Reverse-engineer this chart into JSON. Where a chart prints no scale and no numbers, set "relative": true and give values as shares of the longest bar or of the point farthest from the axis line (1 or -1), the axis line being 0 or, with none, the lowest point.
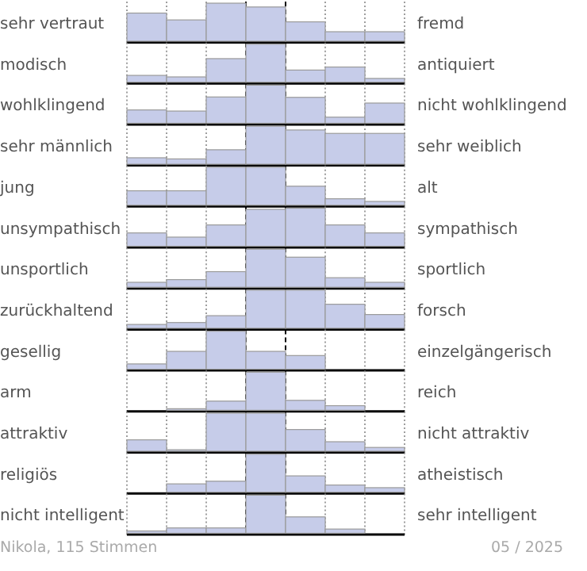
{
  "chart_data": [
    {
      "type": "bar",
      "relative": true,
      "ylabel": "sehr vertraut",
      "y2label": "fremd",
      "categories": [
        null,
        null,
        null,
        null,
        null,
        null,
        null
      ],
      "values": [
        0.74,
        0.56,
        1,
        0.9,
        0.51,
        0.25,
        0.25
      ],
      "color": "#c6cce9",
      "grid": "x"
    },
    {
      "type": "bar",
      "relative": true,
      "ylabel": "modisch",
      "y2label": "antiquiert",
      "categories": [
        null,
        null,
        null,
        null,
        null,
        null,
        null
      ],
      "values": [
        0.18,
        0.14,
        0.62,
        1,
        0.32,
        0.4,
        0.1
      ],
      "color": "#c6cce9",
      "grid": "x"
    },
    {
      "type": "bar",
      "relative": true,
      "ylabel": "wohlklingend",
      "y2label": "nicht wohlklingend",
      "categories": [
        null,
        null,
        null,
        null,
        null,
        null,
        null
      ],
      "values": [
        0.35,
        0.32,
        0.69,
        1,
        0.68,
        0.16,
        0.53
      ],
      "color": "#c6cce9",
      "grid": "x"
    },
    {
      "type": "bar",
      "relative": true,
      "ylabel": "sehr männlich",
      "y2label": "sehr weiblich",
      "categories": [
        null,
        null,
        null,
        null,
        null,
        null,
        null
      ],
      "values": [
        0.17,
        0.14,
        0.38,
        1,
        0.9,
        0.81,
        0.81
      ],
      "color": "#c6cce9",
      "grid": "x"
    },
    {
      "type": "bar",
      "relative": true,
      "ylabel": "jung",
      "y2label": "alt",
      "categories": [
        null,
        null,
        null,
        null,
        null,
        null,
        null
      ],
      "values": [
        0.38,
        0.38,
        1,
        1,
        0.5,
        0.17,
        0.1
      ],
      "color": "#c6cce9",
      "grid": "x"
    },
    {
      "type": "bar",
      "relative": true,
      "ylabel": "unsympathisch",
      "y2label": "sympathisch",
      "categories": [
        null,
        null,
        null,
        null,
        null,
        null,
        null
      ],
      "values": [
        0.35,
        0.24,
        0.56,
        0.97,
        1,
        0.56,
        0.35
      ],
      "color": "#c6cce9",
      "grid": "x"
    },
    {
      "type": "bar",
      "relative": true,
      "ylabel": "unsportlich",
      "y2label": "sportlich",
      "categories": [
        null,
        null,
        null,
        null,
        null,
        null,
        null
      ],
      "values": [
        0.13,
        0.2,
        0.41,
        1,
        0.79,
        0.25,
        0.13
      ],
      "color": "#c6cce9",
      "grid": "x"
    },
    {
      "type": "bar",
      "relative": true,
      "ylabel": "zurückhaltend",
      "y2label": "forsch",
      "categories": [
        null,
        null,
        null,
        null,
        null,
        null,
        null
      ],
      "values": [
        0.1,
        0.15,
        0.33,
        1,
        1,
        0.63,
        0.36
      ],
      "color": "#c6cce9",
      "grid": "x"
    },
    {
      "type": "bar",
      "relative": true,
      "ylabel": "gesellig",
      "y2label": "einzelgängerisch",
      "categories": [
        null,
        null,
        null,
        null,
        null,
        null,
        null
      ],
      "values": [
        0.14,
        0.47,
        1,
        0.47,
        0.36,
        0,
        0
      ],
      "color": "#c6cce9",
      "grid": "x"
    },
    {
      "type": "bar",
      "relative": true,
      "ylabel": "arm",
      "y2label": "reich",
      "categories": [
        null,
        null,
        null,
        null,
        null,
        null,
        null
      ],
      "values": [
        0,
        0.04,
        0.24,
        1,
        0.26,
        0.12,
        0
      ],
      "color": "#c6cce9",
      "grid": "x"
    },
    {
      "type": "bar",
      "relative": true,
      "ylabel": "attraktiv",
      "y2label": "nicht attraktiv",
      "categories": [
        null,
        null,
        null,
        null,
        null,
        null,
        null
      ],
      "values": [
        0.3,
        0.04,
        1,
        1,
        0.57,
        0.25,
        0.1
      ],
      "color": "#c6cce9",
      "grid": "x"
    },
    {
      "type": "bar",
      "relative": true,
      "ylabel": "religiös",
      "y2label": "atheistisch",
      "categories": [
        null,
        null,
        null,
        null,
        null,
        null,
        null
      ],
      "values": [
        0,
        0.22,
        0.29,
        1,
        0.43,
        0.19,
        0.12
      ],
      "color": "#c6cce9",
      "grid": "x"
    },
    {
      "type": "bar",
      "relative": true,
      "ylabel": "nicht intelligent",
      "y2label": "sehr intelligent",
      "categories": [
        null,
        null,
        null,
        null,
        null,
        null,
        null
      ],
      "values": [
        0.06,
        0.14,
        0.14,
        1,
        0.43,
        0.11,
        0
      ],
      "color": "#c6cce9",
      "grid": "x",
      "annotations": [
        "Nikola, 115 Stimmen",
        "05 / 2025"
      ]
    }
  ]
}
